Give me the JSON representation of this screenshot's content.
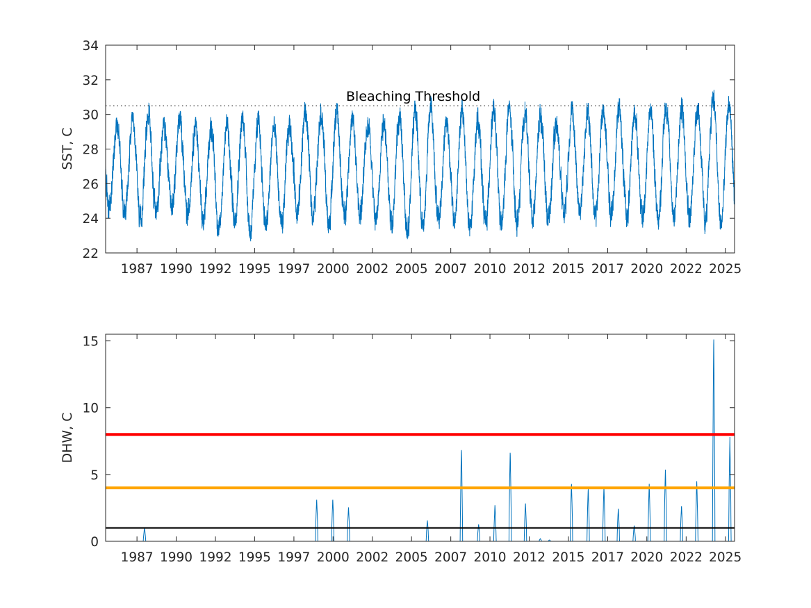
{
  "chart_data": [
    {
      "type": "line",
      "ylabel": "SST, C",
      "ylim": [
        22,
        34
      ],
      "yticks": [
        22,
        24,
        26,
        28,
        30,
        32,
        34
      ],
      "xlim": [
        "1985-01-01",
        "2025-02-01"
      ],
      "xtick_dates": [
        "1987-01-01",
        "1989-07-01",
        "1992-01-01",
        "1994-07-01",
        "1997-01-01",
        "1999-07-01",
        "2002-01-01",
        "2004-07-01",
        "2007-01-01",
        "2009-07-01",
        "2012-01-01",
        "2014-07-01",
        "2017-01-01",
        "2019-07-01",
        "2022-01-01",
        "2024-07-01"
      ],
      "xtick_labels": [
        "1987",
        "1990",
        "1992",
        "1995",
        "1997",
        "2000",
        "2002",
        "2005",
        "2007",
        "2010",
        "2012",
        "2015",
        "2017",
        "2020",
        "2022",
        "2025"
      ],
      "threshold": {
        "value": 30.5,
        "label": "Bleaching Threshold",
        "style": "dotted"
      },
      "series": [
        {
          "color": "#0072BD",
          "seasonal_yearly": [
            {
              "year": 1985,
              "max": 30.1,
              "min": 24.0
            },
            {
              "year": 1986,
              "max": 29.9,
              "min": 23.8
            },
            {
              "year": 1987,
              "max": 31.0,
              "min": 23.0
            },
            {
              "year": 1988,
              "max": 29.7,
              "min": 23.9
            },
            {
              "year": 1989,
              "max": 30.3,
              "min": 24.2
            },
            {
              "year": 1990,
              "max": 30.0,
              "min": 23.6
            },
            {
              "year": 1991,
              "max": 29.8,
              "min": 23.2
            },
            {
              "year": 1992,
              "max": 30.0,
              "min": 22.5
            },
            {
              "year": 1993,
              "max": 30.3,
              "min": 23.4
            },
            {
              "year": 1994,
              "max": 30.3,
              "min": 22.5
            },
            {
              "year": 1995,
              "max": 29.9,
              "min": 22.9
            },
            {
              "year": 1996,
              "max": 29.8,
              "min": 23.0
            },
            {
              "year": 1997,
              "max": 30.8,
              "min": 23.7
            },
            {
              "year": 1998,
              "max": 30.7,
              "min": 23.6
            },
            {
              "year": 1999,
              "max": 30.9,
              "min": 22.8
            },
            {
              "year": 2000,
              "max": 30.3,
              "min": 23.6
            },
            {
              "year": 2001,
              "max": 30.0,
              "min": 23.7
            },
            {
              "year": 2002,
              "max": 30.3,
              "min": 23.2
            },
            {
              "year": 2003,
              "max": 30.3,
              "min": 23.2
            },
            {
              "year": 2004,
              "max": 31.0,
              "min": 22.3
            },
            {
              "year": 2005,
              "max": 31.5,
              "min": 22.6
            },
            {
              "year": 2006,
              "max": 30.0,
              "min": 23.4
            },
            {
              "year": 2007,
              "max": 31.0,
              "min": 23.2
            },
            {
              "year": 2008,
              "max": 30.3,
              "min": 22.6
            },
            {
              "year": 2009,
              "max": 30.8,
              "min": 23.0
            },
            {
              "year": 2010,
              "max": 31.2,
              "min": 22.8
            },
            {
              "year": 2011,
              "max": 30.8,
              "min": 22.9
            },
            {
              "year": 2012,
              "max": 30.8,
              "min": 23.4
            },
            {
              "year": 2013,
              "max": 29.8,
              "min": 23.4
            },
            {
              "year": 2014,
              "max": 30.8,
              "min": 23.7
            },
            {
              "year": 2015,
              "max": 30.6,
              "min": 23.9
            },
            {
              "year": 2016,
              "max": 30.9,
              "min": 23.5
            },
            {
              "year": 2017,
              "max": 31.0,
              "min": 23.5
            },
            {
              "year": 2018,
              "max": 30.7,
              "min": 23.5
            },
            {
              "year": 2019,
              "max": 30.8,
              "min": 23.3
            },
            {
              "year": 2020,
              "max": 31.3,
              "min": 23.2
            },
            {
              "year": 2021,
              "max": 31.0,
              "min": 23.5
            },
            {
              "year": 2022,
              "max": 30.9,
              "min": 23.4
            },
            {
              "year": 2023,
              "max": 32.0,
              "min": 23.0
            },
            {
              "year": 2024,
              "max": 31.3,
              "min": 22.9
            }
          ]
        }
      ]
    },
    {
      "type": "line",
      "ylabel": "DHW, C",
      "ylim": [
        0,
        15.5
      ],
      "yticks": [
        0,
        5,
        10,
        15
      ],
      "xlim": [
        "1985-01-01",
        "2025-02-01"
      ],
      "xtick_dates": [
        "1987-01-01",
        "1989-07-01",
        "1992-01-01",
        "1994-07-01",
        "1997-01-01",
        "1999-07-01",
        "2002-01-01",
        "2004-07-01",
        "2007-01-01",
        "2009-07-01",
        "2012-01-01",
        "2014-07-01",
        "2017-01-01",
        "2019-07-01",
        "2022-01-01",
        "2024-07-01"
      ],
      "xtick_labels": [
        "1987",
        "1990",
        "1992",
        "1995",
        "1997",
        "2000",
        "2002",
        "2005",
        "2007",
        "2010",
        "2012",
        "2015",
        "2017",
        "2020",
        "2022",
        "2025"
      ],
      "reference_lines": [
        {
          "value": 8,
          "color": "#FF0000"
        },
        {
          "value": 4,
          "color": "#FFA500"
        },
        {
          "value": 1,
          "color": "#000000"
        }
      ],
      "series": [
        {
          "color": "#0072BD",
          "events": [
            {
              "date": "1987-06-25",
              "peak": 1.0
            },
            {
              "date": "1998-06-15",
              "peak": 3.2
            },
            {
              "date": "1999-06-25",
              "peak": 3.2
            },
            {
              "date": "2000-06-25",
              "peak": 2.6
            },
            {
              "date": "2005-07-05",
              "peak": 1.6
            },
            {
              "date": "2007-09-05",
              "peak": 7.0
            },
            {
              "date": "2008-10-10",
              "peak": 1.3
            },
            {
              "date": "2009-10-25",
              "peak": 2.7
            },
            {
              "date": "2010-10-15",
              "peak": 6.8
            },
            {
              "date": "2011-10-05",
              "peak": 2.9
            },
            {
              "date": "2012-09-15",
              "peak": 0.2
            },
            {
              "date": "2013-04-15",
              "peak": 0.1
            },
            {
              "date": "2014-09-10",
              "peak": 4.4
            },
            {
              "date": "2015-10-05",
              "peak": 4.0
            },
            {
              "date": "2016-10-05",
              "peak": 4.1
            },
            {
              "date": "2017-09-05",
              "peak": 2.5
            },
            {
              "date": "2018-09-10",
              "peak": 1.2
            },
            {
              "date": "2019-08-25",
              "peak": 4.3
            },
            {
              "date": "2020-09-05",
              "peak": 5.5
            },
            {
              "date": "2021-09-15",
              "peak": 2.7
            },
            {
              "date": "2022-09-05",
              "peak": 4.5
            },
            {
              "date": "2023-10-05",
              "peak": 15.5
            },
            {
              "date": "2024-10-15",
              "peak": 7.8
            }
          ]
        }
      ]
    }
  ]
}
